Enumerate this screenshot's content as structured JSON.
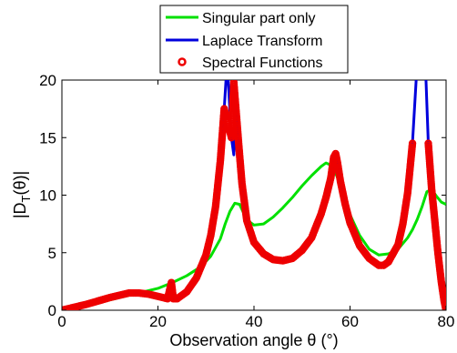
{
  "chart_data": {
    "type": "line",
    "xlabel": "Observation angle θ (°)",
    "ylabel_main": "|D",
    "ylabel_sub": "T",
    "ylabel_tail": "(θ)|",
    "xlim": [
      0,
      80
    ],
    "ylim": [
      0,
      20
    ],
    "xticks": [
      0,
      20,
      40,
      60,
      80
    ],
    "yticks": [
      0,
      5,
      10,
      15,
      20
    ],
    "grid": false,
    "legend_position": "top-center",
    "series": [
      {
        "name": "Singular part only",
        "color": "#00e000",
        "style": "line",
        "x": [
          0,
          5,
          10,
          15,
          20,
          23,
          26,
          29,
          31,
          33,
          34,
          35,
          36,
          37,
          38,
          39,
          40,
          42,
          44,
          46,
          48,
          50,
          52,
          54,
          55,
          56,
          57,
          58,
          59,
          60,
          62,
          64,
          66,
          68,
          70,
          72,
          73,
          74,
          75,
          76,
          77,
          78,
          79,
          80
        ],
        "y": [
          0,
          0.4,
          0.9,
          1.4,
          1.9,
          2.4,
          3.0,
          3.8,
          4.7,
          6.2,
          7.5,
          8.6,
          9.3,
          9.2,
          8.3,
          7.7,
          7.4,
          7.5,
          8.1,
          8.9,
          9.8,
          10.8,
          11.7,
          12.5,
          12.8,
          12.6,
          11.9,
          10.9,
          9.6,
          8.3,
          6.5,
          5.3,
          4.8,
          4.9,
          5.3,
          6.3,
          7.0,
          7.9,
          9.0,
          10.3,
          10.5,
          9.9,
          9.4,
          9.2
        ]
      },
      {
        "name": "Laplace Transform",
        "color": "#0000dd",
        "style": "line",
        "x": [
          0,
          5,
          10,
          14,
          16,
          18,
          20,
          22,
          22.8,
          23.2,
          24,
          26,
          28,
          30,
          31,
          32,
          33,
          33.8,
          34.2,
          34.6,
          35.3,
          35.8,
          36.2,
          36.8,
          37.5,
          38.5,
          40,
          42,
          44,
          46,
          48,
          50,
          52,
          54,
          55,
          56,
          56.6,
          57,
          57.4,
          58,
          59,
          60,
          62,
          64,
          66,
          67,
          68,
          70,
          71,
          72,
          73,
          73.8,
          74.2,
          75.4,
          75.8,
          76.3,
          77,
          77.6,
          78.3,
          79,
          79.6,
          80
        ],
        "y": [
          0,
          0.5,
          1.1,
          1.5,
          1.5,
          1.4,
          1.2,
          1.0,
          2.4,
          1.0,
          1.0,
          1.6,
          2.8,
          4.8,
          6.5,
          9.0,
          13.0,
          17.5,
          20.2,
          20.2,
          15.0,
          13.5,
          20.2,
          14.5,
          11.0,
          7.8,
          5.9,
          4.9,
          4.4,
          4.3,
          4.5,
          5.2,
          6.3,
          8.4,
          9.8,
          11.5,
          13.3,
          13.6,
          12.8,
          11.2,
          9.2,
          7.6,
          5.6,
          4.5,
          3.9,
          3.9,
          4.2,
          5.7,
          7.5,
          10.2,
          14.5,
          20.2,
          20.2,
          20.2,
          20.2,
          14.5,
          10.5,
          8.0,
          5.0,
          2.5,
          0.8,
          0
        ]
      },
      {
        "name": "Spectral Functions",
        "color": "#ee0000",
        "style": "markers",
        "x": [
          0,
          5,
          10,
          14,
          16,
          18,
          20,
          22,
          22.8,
          23.2,
          24,
          26,
          28,
          30,
          31,
          32,
          33,
          33.8,
          35.3,
          35.8,
          36.8,
          37.5,
          38.5,
          40,
          42,
          44,
          46,
          48,
          50,
          52,
          54,
          55,
          56,
          56.6,
          57,
          57.4,
          58,
          59,
          60,
          62,
          64,
          66,
          67,
          68,
          70,
          71,
          72,
          73,
          76.3,
          77,
          77.6,
          78.3,
          79,
          79.6,
          80
        ],
        "y": [
          0,
          0.5,
          1.1,
          1.5,
          1.5,
          1.4,
          1.2,
          1.0,
          2.4,
          1.0,
          1.0,
          1.6,
          2.8,
          4.8,
          6.5,
          9.0,
          13.0,
          17.5,
          15.0,
          19.8,
          14.5,
          11.0,
          7.8,
          5.9,
          4.9,
          4.4,
          4.3,
          4.5,
          5.2,
          6.3,
          8.4,
          9.8,
          11.5,
          13.3,
          13.6,
          12.8,
          11.2,
          9.2,
          7.6,
          5.6,
          4.5,
          3.9,
          3.9,
          4.2,
          5.7,
          7.5,
          10.2,
          14.5,
          14.5,
          10.5,
          8.0,
          5.0,
          2.5,
          0.8,
          0
        ]
      }
    ]
  }
}
